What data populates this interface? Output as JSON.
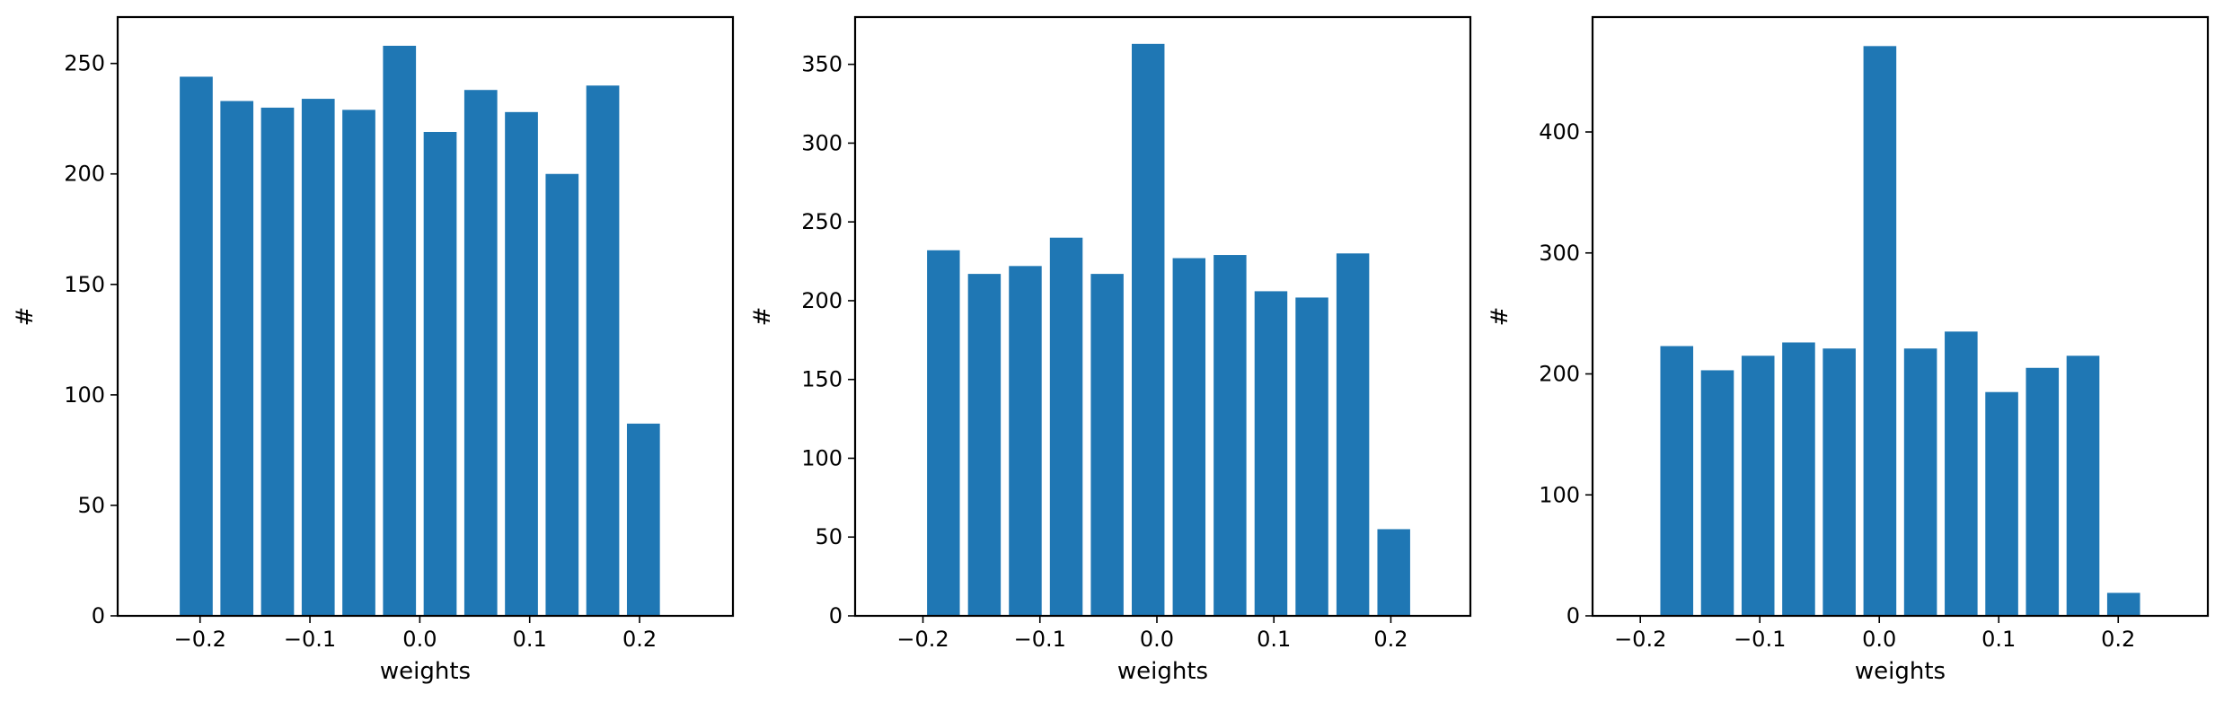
{
  "chart_data": [
    {
      "type": "bar",
      "xlabel": "weights",
      "ylabel": "#",
      "xlim": [
        -0.275,
        0.285
      ],
      "ylim": [
        0,
        271
      ],
      "xticks": [
        -0.2,
        -0.1,
        0.0,
        0.1,
        0.2
      ],
      "xtick_labels": [
        "−0.2",
        "−0.1",
        "0.0",
        "0.1",
        "0.2"
      ],
      "yticks": [
        0,
        50,
        100,
        150,
        200,
        250
      ],
      "bar_width": 0.03,
      "x": [
        -0.2035,
        -0.1665,
        -0.1295,
        -0.0925,
        -0.0555,
        -0.0185,
        0.0185,
        0.0555,
        0.0925,
        0.1295,
        0.1665,
        0.2035
      ],
      "values": [
        244,
        233,
        230,
        234,
        229,
        258,
        219,
        238,
        228,
        200,
        240,
        87
      ]
    },
    {
      "type": "bar",
      "xlabel": "weights",
      "ylabel": "#",
      "xlim": [
        -0.258,
        0.268
      ],
      "ylim": [
        0,
        380
      ],
      "xticks": [
        -0.2,
        -0.1,
        0.0,
        0.1,
        0.2
      ],
      "xtick_labels": [
        "−0.2",
        "−0.1",
        "0.0",
        "0.1",
        "0.2"
      ],
      "yticks": [
        0,
        50,
        100,
        150,
        200,
        250,
        300,
        350
      ],
      "bar_width": 0.028,
      "x": [
        -0.1825,
        -0.1475,
        -0.1125,
        -0.0775,
        -0.0425,
        -0.0075,
        0.0275,
        0.0625,
        0.0975,
        0.1325,
        0.1675,
        0.2025
      ],
      "values": [
        232,
        217,
        222,
        240,
        217,
        363,
        227,
        229,
        206,
        202,
        230,
        55
      ]
    },
    {
      "type": "bar",
      "xlabel": "weights",
      "ylabel": "#",
      "xlim": [
        -0.24,
        0.275
      ],
      "ylim": [
        0,
        495
      ],
      "xticks": [
        -0.2,
        -0.1,
        0.0,
        0.1,
        0.2
      ],
      "xtick_labels": [
        "−0.2",
        "−0.1",
        "0.0",
        "0.1",
        "0.2"
      ],
      "yticks": [
        0,
        100,
        200,
        300,
        400
      ],
      "bar_width": 0.0275,
      "x": [
        -0.1695,
        -0.1355,
        -0.1015,
        -0.0675,
        -0.0335,
        0.0005,
        0.0345,
        0.0685,
        0.1025,
        0.1365,
        0.1705,
        0.2045
      ],
      "values": [
        223,
        203,
        215,
        226,
        221,
        471,
        221,
        235,
        185,
        205,
        215,
        19
      ]
    }
  ],
  "colors": {
    "bar": "#1f77b4",
    "axis": "#000000",
    "background": "#ffffff"
  }
}
